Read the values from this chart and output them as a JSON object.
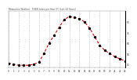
{
  "title": "Milwaukee Weather   THSW Index per Hour (F) (Last 24 Hours)",
  "bg_color": "#ffffff",
  "plot_bg_color": "#ffffff",
  "line_color": "#dd0000",
  "marker_color": "#000000",
  "grid_color": "#aaaaaa",
  "text_color": "#333333",
  "y_label_color": "#333333",
  "title_color": "#555555",
  "ylim": [
    42,
    95
  ],
  "xlim": [
    0,
    23
  ],
  "yticks": [
    45,
    55,
    65,
    75,
    85
  ],
  "ytick_labels": [
    "45",
    "55",
    "65",
    "75",
    "85"
  ],
  "hours": [
    0,
    1,
    2,
    3,
    4,
    5,
    6,
    7,
    8,
    9,
    10,
    11,
    12,
    13,
    14,
    15,
    16,
    17,
    18,
    19,
    20,
    21,
    22,
    23
  ],
  "values": [
    46,
    45,
    44,
    44,
    44,
    45,
    47,
    55,
    65,
    72,
    80,
    87,
    90,
    89,
    88,
    85,
    79,
    71,
    63,
    58,
    55,
    52,
    50,
    48
  ],
  "vgrid_hours": [
    0,
    2,
    4,
    6,
    8,
    10,
    12,
    14,
    16,
    18,
    20,
    22
  ]
}
